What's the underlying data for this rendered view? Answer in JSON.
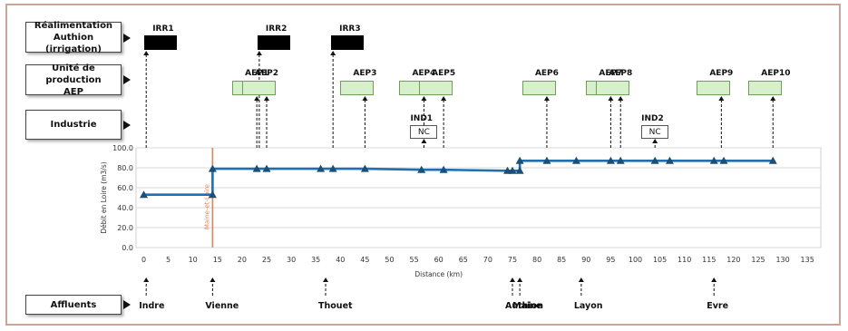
{
  "categories": {
    "realimentation": "Réalimentation\nAuthion (irrigation)",
    "production": "Unité de production\nAEP",
    "industrie": "Industrie",
    "affluents": "Affluents"
  },
  "irrigation": [
    {
      "label": "IRR1",
      "km": 0.5
    },
    {
      "label": "IRR2",
      "km": 23.5
    },
    {
      "label": "IRR3",
      "km": 38.5
    }
  ],
  "aep": [
    {
      "label": "AEP1",
      "km": 23
    },
    {
      "label": "AEP2",
      "km": 25
    },
    {
      "label": "AEP3",
      "km": 45
    },
    {
      "label": "AEP4",
      "km": 57
    },
    {
      "label": "AEP5",
      "km": 61
    },
    {
      "label": "AEP6",
      "km": 82
    },
    {
      "label": "AEP7",
      "km": 95
    },
    {
      "label": "AEP8",
      "km": 97
    },
    {
      "label": "AEP9",
      "km": 117.5
    },
    {
      "label": "AEP10",
      "km": 128
    }
  ],
  "industry": [
    {
      "label": "IND1",
      "value": "NC",
      "km": 57
    },
    {
      "label": "IND2",
      "value": "NC",
      "km": 104
    }
  ],
  "affluents": [
    {
      "label": "Indre",
      "km": 0.5
    },
    {
      "label": "Vienne",
      "km": 14
    },
    {
      "label": "Thouet",
      "km": 37
    },
    {
      "label": "Authion",
      "km": 75
    },
    {
      "label": "Maine",
      "km": 76.5
    },
    {
      "label": "Layon",
      "km": 89
    },
    {
      "label": "Evre",
      "km": 116
    }
  ],
  "department_line": {
    "label": "Maine-et-Loire",
    "km": 14,
    "color": "#e2825a"
  },
  "chart_data": {
    "type": "line",
    "xlabel": "Distance (km)",
    "ylabel": "Débit en Loire (m3/s)",
    "xlim": [
      0,
      135
    ],
    "ylim": [
      0,
      100
    ],
    "xticks": [
      "0",
      "5",
      "10",
      "15",
      "20",
      "25",
      "30",
      "35",
      "40",
      "45",
      "50",
      "55",
      "60",
      "65",
      "70",
      "75",
      "80",
      "85",
      "90",
      "95",
      "100",
      "105",
      "110",
      "115",
      "120",
      "125",
      "130",
      "135"
    ],
    "yticks": [
      "0.0",
      "20.0",
      "40.0",
      "60.0",
      "80.0",
      "100.0"
    ],
    "grid": true,
    "color": "#1f6fb2",
    "marker_color": "#1d4e73",
    "series": [
      {
        "x": [
          0,
          14,
          14,
          23,
          25,
          36,
          38.5,
          45,
          56.5,
          61,
          74,
          75,
          76.5,
          76.5,
          82,
          88,
          95,
          97,
          104,
          107,
          116,
          118,
          128
        ],
        "y": [
          53,
          53,
          79,
          79,
          79,
          79,
          79,
          79,
          78,
          78,
          77,
          77,
          77,
          87,
          87,
          87,
          87,
          87,
          87,
          87,
          87,
          87,
          87
        ],
        "markers": [
          0,
          14,
          14,
          23,
          25,
          36,
          38.5,
          45,
          56.5,
          61,
          74,
          75,
          76.5,
          76.5,
          82,
          88,
          95,
          97,
          104,
          107,
          116,
          118,
          128
        ]
      }
    ]
  }
}
